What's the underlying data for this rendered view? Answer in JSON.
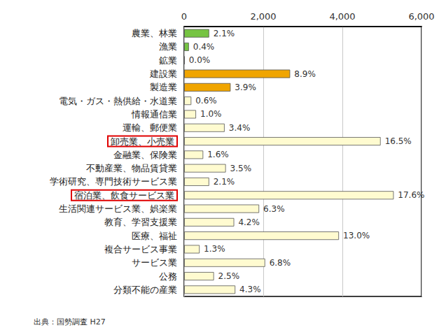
{
  "chart_data": {
    "type": "bar",
    "orientation": "horizontal",
    "categories": [
      "農業、林業",
      "漁業",
      "鉱業",
      "建設業",
      "製造業",
      "電気・ガス・熱供給・水道業",
      "情報通信業",
      "運輸、郵便業",
      "卸売業、小売業",
      "金融業、保険業",
      "不動産業、物品賃貸業",
      "学術研究、専門技術サービス業",
      "宿泊業、飲食サービス業",
      "生活関連サービス業、娯楽業",
      "教育、学習支援業",
      "医療、福祉",
      "複合サービス事業",
      "サービス業",
      "公務",
      "分類不能の産業"
    ],
    "values": [
      632,
      120,
      10,
      2679,
      1174,
      181,
      301,
      1023,
      4967,
      482,
      1054,
      632,
      5298,
      1896,
      1264,
      3913,
      391,
      2047,
      753,
      1294
    ],
    "value_labels": [
      "2.1%",
      "0.4%",
      "0.0%",
      "8.9%",
      "3.9%",
      "0.6%",
      "1.0%",
      "3.4%",
      "16.5%",
      "1.6%",
      "3.5%",
      "2.1%",
      "17.6%",
      "6.3%",
      "4.2%",
      "13.0%",
      "1.3%",
      "6.8%",
      "2.5%",
      "4.3%"
    ],
    "colors": [
      "#76c442",
      "#76c442",
      "#76c442",
      "#f0a500",
      "#f0a500",
      "#fffbd0",
      "#fffbd0",
      "#fffbd0",
      "#fffbd0",
      "#fffbd0",
      "#fffbd0",
      "#fffbd0",
      "#fffbd0",
      "#fffbd0",
      "#fffbd0",
      "#fffbd0",
      "#fffbd0",
      "#fffbd0",
      "#fffbd0",
      "#fffbd0"
    ],
    "data_labels": true,
    "xlim": [
      0,
      6000
    ],
    "xticks": [
      0,
      {
        "value": 2000,
        "label": "2,000"
      },
      {
        "value": 4000,
        "label": "4,000"
      },
      {
        "value": 6000,
        "label": "6,000"
      }
    ],
    "grid": true,
    "annotations": [
      "出典：国勢調査 H27"
    ]
  }
}
